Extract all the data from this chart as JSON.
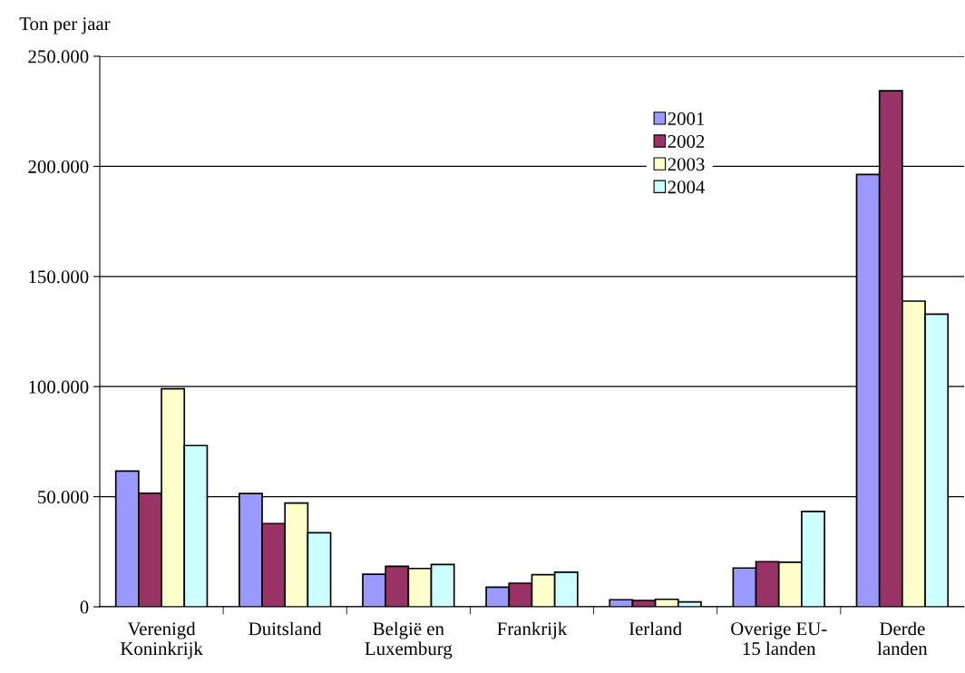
{
  "chart_data": {
    "type": "bar",
    "ylabel": "Ton per jaar",
    "categories": [
      "Verenigd\nKoninkrijk",
      "Duitsland",
      "België en\nLuxemburg",
      "Frankrijk",
      "Ierland",
      "Overige EU-\n15 landen",
      "Derde\nlanden"
    ],
    "series": [
      {
        "name": "2001",
        "color": "#9999ff",
        "values": [
          61600,
          51400,
          14800,
          8900,
          3200,
          17600,
          196300
        ]
      },
      {
        "name": "2002",
        "color": "#993366",
        "values": [
          51600,
          37800,
          18400,
          10700,
          2900,
          20500,
          234300
        ]
      },
      {
        "name": "2003",
        "color": "#ffffcc",
        "values": [
          99000,
          47100,
          17400,
          14600,
          3400,
          20200,
          138800
        ]
      },
      {
        "name": "2004",
        "color": "#ccffff",
        "values": [
          73200,
          33600,
          19200,
          15700,
          2200,
          43300,
          132900
        ]
      }
    ],
    "ylim": [
      0,
      250000
    ],
    "yticks": [
      {
        "value": 0,
        "label": "0"
      },
      {
        "value": 50000,
        "label": "50.000"
      },
      {
        "value": 100000,
        "label": "100.000"
      },
      {
        "value": 150000,
        "label": "150.000"
      },
      {
        "value": 200000,
        "label": "200.000"
      },
      {
        "value": 250000,
        "label": "250.000"
      }
    ],
    "grid": "y",
    "legend": "top right"
  }
}
